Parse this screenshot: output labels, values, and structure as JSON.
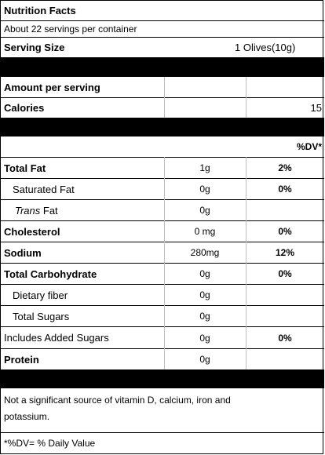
{
  "title": "Nutrition Facts",
  "servings_per_container": "About 22 servings per container",
  "serving_size": {
    "label": "Serving Size",
    "value": "1 Olives(10g)"
  },
  "amount_per_serving": "Amount per serving",
  "calories": {
    "label": "Calories",
    "value": "15"
  },
  "dv_header": "%DV*",
  "nutrients": [
    {
      "name": "Total Fat",
      "amount": "1g",
      "dv": "2%"
    },
    {
      "name": "Saturated Fat",
      "amount": "0g",
      "dv": "0%"
    },
    {
      "name_italic": "Trans",
      "name_rest": " Fat",
      "amount": "0g",
      "dv": ""
    },
    {
      "name": "Cholesterol",
      "amount": "0 mg",
      "dv": "0%"
    },
    {
      "name": "Sodium",
      "amount": "280mg",
      "dv": "12%"
    },
    {
      "name": "Total Carbohydrate",
      "amount": "0g",
      "dv": "0%"
    },
    {
      "name": "Dietary fiber",
      "amount": "0g",
      "dv": ""
    },
    {
      "name": "Total Sugars",
      "amount": "0g",
      "dv": ""
    },
    {
      "name": "Includes Added Sugars",
      "amount": "0g",
      "dv": "0%"
    },
    {
      "name": "Protein",
      "amount": "0g",
      "dv": ""
    }
  ],
  "footnote": "Not a significant source of vitamin D, calcium, iron and potassium.",
  "dv_footnote": "*%DV= % Daily Value"
}
